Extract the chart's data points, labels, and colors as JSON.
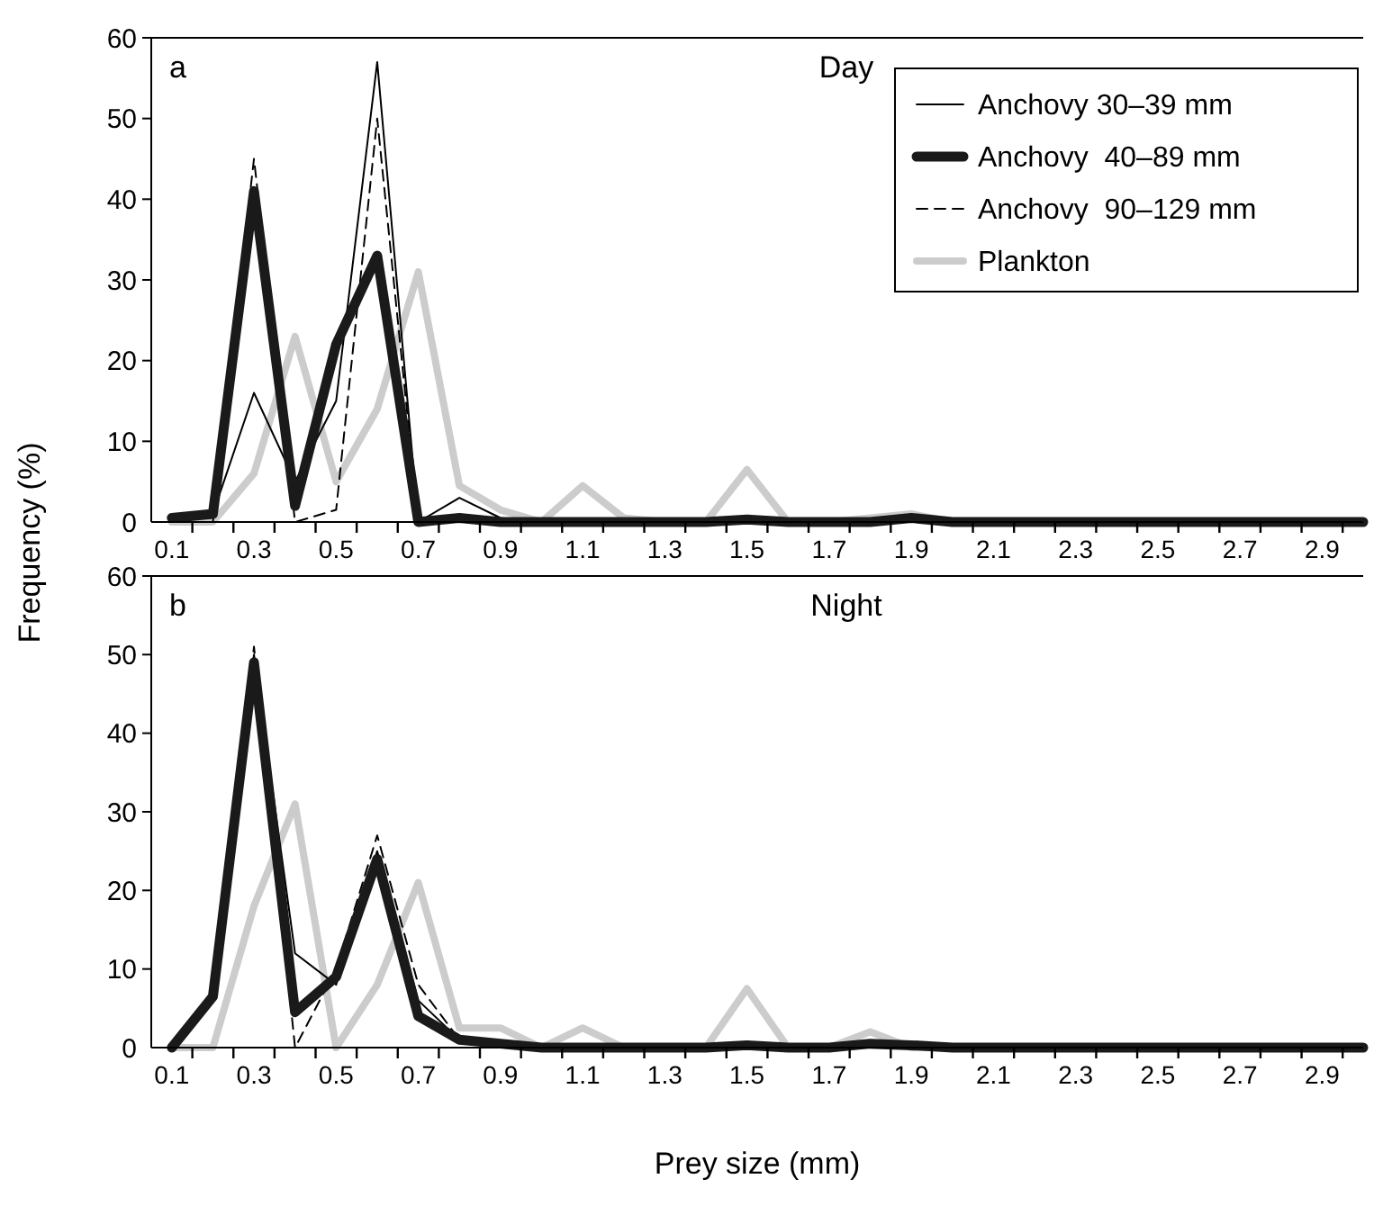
{
  "chart_data": [
    {
      "type": "line",
      "title": "Day",
      "ylabel": "Frequency (%)",
      "annotations": [
        "a"
      ],
      "legend": "top right",
      "grid": false,
      "x": [
        0.1,
        0.2,
        0.3,
        0.4,
        0.5,
        0.6,
        0.7,
        0.8,
        0.9,
        1.0,
        1.1,
        1.2,
        1.3,
        1.4,
        1.5,
        1.6,
        1.7,
        1.8,
        1.9,
        2.0,
        2.1,
        2.2,
        2.3,
        2.4,
        2.5,
        2.6,
        2.7,
        2.8,
        2.9,
        3.0
      ],
      "xlim": [
        0.05,
        3.0
      ],
      "ylim": [
        0,
        60
      ],
      "yticks": [
        0,
        10,
        20,
        30,
        40,
        50,
        60
      ],
      "xticks": [
        {
          "value": 0.1,
          "label": "0.1"
        },
        {
          "value": 0.15,
          "label": null
        },
        {
          "value": 0.25,
          "label": null
        },
        {
          "value": 0.3,
          "label": "0.3"
        },
        {
          "value": 0.35,
          "label": null
        },
        {
          "value": 0.45,
          "label": null
        },
        {
          "value": 0.5,
          "label": "0.5"
        },
        {
          "value": 0.55,
          "label": null
        },
        {
          "value": 0.65,
          "label": null
        },
        {
          "value": 0.7,
          "label": "0.7"
        },
        {
          "value": 0.75,
          "label": null
        },
        {
          "value": 0.85,
          "label": null
        },
        {
          "value": 0.9,
          "label": "0.9"
        },
        {
          "value": 0.95,
          "label": null
        },
        {
          "value": 1.05,
          "label": null
        },
        {
          "value": 1.1,
          "label": "1.1"
        },
        {
          "value": 1.15,
          "label": null
        },
        {
          "value": 1.25,
          "label": null
        },
        {
          "value": 1.3,
          "label": "1.3"
        },
        {
          "value": 1.35,
          "label": null
        },
        {
          "value": 1.45,
          "label": null
        },
        {
          "value": 1.5,
          "label": "1.5"
        },
        {
          "value": 1.55,
          "label": null
        },
        {
          "value": 1.65,
          "label": null
        },
        {
          "value": 1.7,
          "label": "1.7"
        },
        {
          "value": 1.75,
          "label": null
        },
        {
          "value": 1.85,
          "label": null
        },
        {
          "value": 1.9,
          "label": "1.9"
        },
        {
          "value": 1.95,
          "label": null
        },
        {
          "value": 2.05,
          "label": null
        },
        {
          "value": 2.1,
          "label": "2.1"
        },
        {
          "value": 2.15,
          "label": null
        },
        {
          "value": 2.25,
          "label": null
        },
        {
          "value": 2.3,
          "label": "2.3"
        },
        {
          "value": 2.35,
          "label": null
        },
        {
          "value": 2.45,
          "label": null
        },
        {
          "value": 2.5,
          "label": "2.5"
        },
        {
          "value": 2.55,
          "label": null
        },
        {
          "value": 2.65,
          "label": null
        },
        {
          "value": 2.7,
          "label": "2.7"
        },
        {
          "value": 2.75,
          "label": null
        },
        {
          "value": 2.85,
          "label": null
        },
        {
          "value": 2.9,
          "label": "2.9"
        },
        {
          "value": 2.95,
          "label": null
        }
      ],
      "series": [
        {
          "name": "Anchovy 30–39 mm",
          "color": "#000000",
          "line_style": "solid",
          "values": [
            0.5,
            1,
            16,
            5,
            15,
            57,
            0,
            3,
            0.5,
            0,
            0,
            0,
            0,
            0,
            0,
            0,
            0,
            0,
            0,
            0,
            0,
            0,
            0,
            0,
            0,
            0,
            0,
            0,
            0,
            0
          ]
        },
        {
          "name": "Anchovy  40–89 mm",
          "color": "#1a1a1a",
          "line_style": "solid",
          "values": [
            0.5,
            1,
            41,
            2,
            22,
            33,
            0,
            0.5,
            0,
            0,
            0,
            0,
            0,
            0,
            0.3,
            0,
            0,
            0,
            0.5,
            0,
            0,
            0,
            0,
            0,
            0,
            0,
            0,
            0,
            0,
            0
          ]
        },
        {
          "name": "Anchovy  90–129 mm",
          "color": "#000000",
          "line_style": "dashed",
          "values": [
            0,
            0,
            45,
            0,
            1.5,
            50,
            0,
            0.5,
            0,
            0,
            0,
            0,
            0,
            0,
            0,
            0,
            0,
            0,
            0,
            0,
            0,
            0,
            0,
            0,
            0,
            0,
            0,
            0,
            0,
            0
          ]
        },
        {
          "name": "Plankton",
          "color": "#cccccc",
          "line_style": "solid",
          "values": [
            0,
            0,
            6,
            23,
            5,
            14,
            31,
            4.5,
            1.5,
            0,
            4.5,
            0.5,
            0,
            0,
            6.5,
            0,
            0,
            0.5,
            1,
            0,
            0,
            0,
            0,
            0,
            0,
            0,
            0,
            0,
            0,
            0
          ]
        }
      ]
    },
    {
      "type": "line",
      "title": "Night",
      "xlabel": "Prey size (mm)",
      "annotations": [
        "b"
      ],
      "legend": false,
      "grid": false,
      "x": [
        0.1,
        0.2,
        0.3,
        0.4,
        0.5,
        0.6,
        0.7,
        0.8,
        0.9,
        1.0,
        1.1,
        1.2,
        1.3,
        1.4,
        1.5,
        1.6,
        1.7,
        1.8,
        1.9,
        2.0,
        2.1,
        2.2,
        2.3,
        2.4,
        2.5,
        2.6,
        2.7,
        2.8,
        2.9,
        3.0
      ],
      "xlim": [
        0.05,
        3.0
      ],
      "ylim": [
        0,
        60
      ],
      "yticks": [
        0,
        10,
        20,
        30,
        40,
        50,
        60
      ],
      "xticks": [
        {
          "value": 0.1,
          "label": "0.1"
        },
        {
          "value": 0.15,
          "label": null
        },
        {
          "value": 0.25,
          "label": null
        },
        {
          "value": 0.3,
          "label": "0.3"
        },
        {
          "value": 0.35,
          "label": null
        },
        {
          "value": 0.45,
          "label": null
        },
        {
          "value": 0.5,
          "label": "0.5"
        },
        {
          "value": 0.55,
          "label": null
        },
        {
          "value": 0.65,
          "label": null
        },
        {
          "value": 0.7,
          "label": "0.7"
        },
        {
          "value": 0.75,
          "label": null
        },
        {
          "value": 0.85,
          "label": null
        },
        {
          "value": 0.9,
          "label": "0.9"
        },
        {
          "value": 0.95,
          "label": null
        },
        {
          "value": 1.05,
          "label": null
        },
        {
          "value": 1.1,
          "label": "1.1"
        },
        {
          "value": 1.15,
          "label": null
        },
        {
          "value": 1.25,
          "label": null
        },
        {
          "value": 1.3,
          "label": "1.3"
        },
        {
          "value": 1.35,
          "label": null
        },
        {
          "value": 1.45,
          "label": null
        },
        {
          "value": 1.5,
          "label": "1.5"
        },
        {
          "value": 1.55,
          "label": null
        },
        {
          "value": 1.65,
          "label": null
        },
        {
          "value": 1.7,
          "label": "1.7"
        },
        {
          "value": 1.75,
          "label": null
        },
        {
          "value": 1.85,
          "label": null
        },
        {
          "value": 1.9,
          "label": "1.9"
        },
        {
          "value": 1.95,
          "label": null
        },
        {
          "value": 2.05,
          "label": null
        },
        {
          "value": 2.1,
          "label": "2.1"
        },
        {
          "value": 2.15,
          "label": null
        },
        {
          "value": 2.25,
          "label": null
        },
        {
          "value": 2.3,
          "label": "2.3"
        },
        {
          "value": 2.35,
          "label": null
        },
        {
          "value": 2.45,
          "label": null
        },
        {
          "value": 2.5,
          "label": "2.5"
        },
        {
          "value": 2.55,
          "label": null
        },
        {
          "value": 2.65,
          "label": null
        },
        {
          "value": 2.7,
          "label": "2.7"
        },
        {
          "value": 2.75,
          "label": null
        },
        {
          "value": 2.85,
          "label": null
        },
        {
          "value": 2.9,
          "label": "2.9"
        },
        {
          "value": 2.95,
          "label": null
        }
      ],
      "series": [
        {
          "color": "#000000",
          "line_style": "solid",
          "values": [
            0,
            6,
            50,
            12,
            8,
            25,
            6,
            1,
            0.5,
            0,
            0,
            0,
            0,
            0,
            0,
            0,
            0,
            0,
            0,
            0,
            0,
            0,
            0,
            0,
            0,
            0,
            0,
            0,
            0,
            0
          ]
        },
        {
          "color": "#1a1a1a",
          "line_style": "solid",
          "values": [
            0,
            6.5,
            49,
            4.5,
            9,
            24,
            4,
            1,
            0.5,
            0,
            0,
            0,
            0,
            0,
            0.3,
            0,
            0,
            0.5,
            0.3,
            0,
            0,
            0,
            0,
            0,
            0,
            0,
            0,
            0,
            0,
            0
          ]
        },
        {
          "color": "#000000",
          "line_style": "dashed",
          "values": [
            0,
            6,
            51,
            0,
            10,
            27,
            8,
            1,
            0,
            0,
            0,
            0,
            0,
            0,
            0,
            0,
            0,
            0,
            0,
            0,
            0,
            0,
            0,
            0,
            0,
            0,
            0,
            0,
            0,
            0
          ]
        },
        {
          "color": "#cccccc",
          "line_style": "solid",
          "values": [
            0,
            0,
            18,
            31,
            0,
            8,
            21,
            2.5,
            2.5,
            0,
            2.5,
            0,
            0,
            0,
            7.5,
            0,
            0,
            2,
            0,
            0,
            0,
            0,
            0,
            0,
            0,
            0,
            0,
            0,
            0,
            0
          ]
        }
      ]
    }
  ]
}
